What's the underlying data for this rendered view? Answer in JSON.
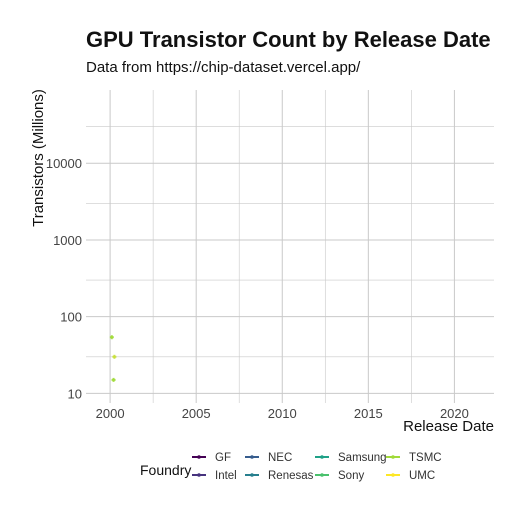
{
  "chart_data": {
    "type": "scatter",
    "title": "GPU Transistor Count by Release Date",
    "subtitle": "Data from https://chip-dataset.vercel.app/",
    "xlabel": "Release Date",
    "ylabel": "Transistors (Millions)",
    "x_scale": "date",
    "y_scale": "log",
    "xlim": [
      1998.6,
      2022.3
    ],
    "ylim": [
      7.5,
      90000
    ],
    "x_ticks": [
      2000,
      2005,
      2010,
      2015,
      2020
    ],
    "y_ticks": [
      10,
      100,
      1000,
      10000
    ],
    "x_tick_labels": [
      "2000",
      "2005",
      "2010",
      "2015",
      "2020"
    ],
    "y_tick_labels": [
      "10",
      "100",
      "1000",
      "10000"
    ],
    "grid": true,
    "legend": {
      "title": "Foundry",
      "placement": "bottom",
      "entries": [
        {
          "name": "GF",
          "color": "#440154"
        },
        {
          "name": "Intel",
          "color": "#46337E"
        },
        {
          "name": "NEC",
          "color": "#365C8D"
        },
        {
          "name": "Renesas",
          "color": "#277F8E"
        },
        {
          "name": "Samsung",
          "color": "#1FA187"
        },
        {
          "name": "Sony",
          "color": "#4AC16D"
        },
        {
          "name": "TSMC",
          "color": "#A0DA39"
        },
        {
          "name": "UMC",
          "color": "#FDE725"
        }
      ]
    },
    "series": [
      {
        "name": "TSMC",
        "color": "#A0DA39",
        "points": [
          {
            "x": 2000.1,
            "y": 54
          },
          {
            "x": 2000.2,
            "y": 15
          }
        ]
      },
      {
        "name": "UMC",
        "color": "#FDE725",
        "points": []
      }
    ],
    "extra_points": [
      {
        "color": "#C8E03A",
        "x": 2000.25,
        "y": 30
      }
    ]
  }
}
